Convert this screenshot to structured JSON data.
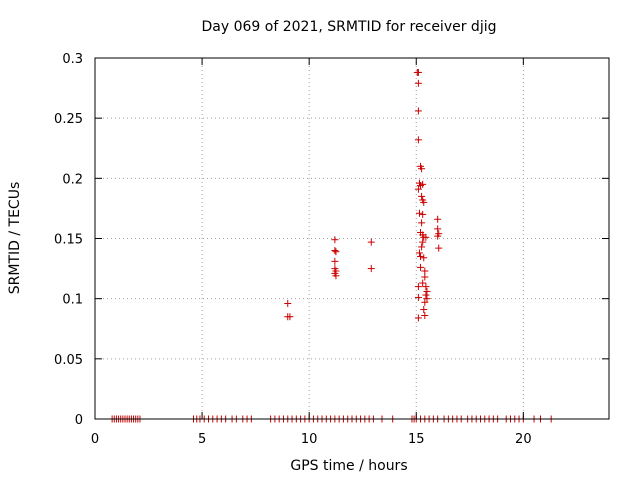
{
  "chart_data": {
    "type": "scatter",
    "title": "Day 069 of 2021, SRMTID for receiver djig",
    "xlabel": "GPS time / hours",
    "ylabel": "SRMTID / TECUs",
    "xlim": [
      0,
      24
    ],
    "ylim": [
      0,
      0.3
    ],
    "xticks": [
      0,
      5,
      10,
      15,
      20
    ],
    "yticks": [
      0,
      0.05,
      0.1,
      0.15,
      0.2,
      0.25,
      0.3
    ],
    "xtick_labels": [
      "0",
      "5",
      "10",
      "15",
      "20"
    ],
    "ytick_labels": [
      "0",
      "0.05",
      "0.1",
      "0.15",
      "0.2",
      "0.25",
      "0.3"
    ],
    "grid": true,
    "marker_color": "#cc0000",
    "marker": "plus",
    "series": [
      {
        "values": [
          [
            0.8,
            0
          ],
          [
            0.9,
            0
          ],
          [
            1.0,
            0
          ],
          [
            1.1,
            0
          ],
          [
            1.2,
            0
          ],
          [
            1.3,
            0
          ],
          [
            1.4,
            0
          ],
          [
            1.5,
            0
          ],
          [
            1.6,
            0
          ],
          [
            1.7,
            0
          ],
          [
            1.8,
            0
          ],
          [
            1.9,
            0
          ],
          [
            2.0,
            0
          ],
          [
            2.1,
            0
          ],
          [
            4.6,
            0
          ],
          [
            4.75,
            0
          ],
          [
            4.9,
            0
          ],
          [
            5.1,
            0
          ],
          [
            5.3,
            0
          ],
          [
            5.5,
            0
          ],
          [
            5.7,
            0
          ],
          [
            5.9,
            0
          ],
          [
            6.1,
            0
          ],
          [
            6.4,
            0
          ],
          [
            6.6,
            0
          ],
          [
            6.9,
            0
          ],
          [
            7.1,
            0
          ],
          [
            7.3,
            0
          ],
          [
            8.2,
            0
          ],
          [
            8.4,
            0
          ],
          [
            8.6,
            0
          ],
          [
            8.8,
            0
          ],
          [
            9.0,
            0
          ],
          [
            9.2,
            0
          ],
          [
            9.4,
            0
          ],
          [
            9.6,
            0
          ],
          [
            9.8,
            0
          ],
          [
            10.0,
            0
          ],
          [
            10.2,
            0
          ],
          [
            10.4,
            0
          ],
          [
            10.6,
            0
          ],
          [
            10.8,
            0
          ],
          [
            11.0,
            0
          ],
          [
            11.2,
            0
          ],
          [
            11.4,
            0
          ],
          [
            11.6,
            0
          ],
          [
            11.8,
            0
          ],
          [
            12.0,
            0
          ],
          [
            12.2,
            0
          ],
          [
            12.4,
            0
          ],
          [
            12.6,
            0
          ],
          [
            12.8,
            0
          ],
          [
            13.0,
            0
          ],
          [
            13.4,
            0
          ],
          [
            13.9,
            0
          ],
          [
            14.8,
            0
          ],
          [
            14.9,
            0
          ],
          [
            15.0,
            0
          ],
          [
            15.2,
            0
          ],
          [
            15.4,
            0
          ],
          [
            15.6,
            0
          ],
          [
            15.8,
            0
          ],
          [
            16.0,
            0
          ],
          [
            16.3,
            0
          ],
          [
            16.5,
            0
          ],
          [
            16.7,
            0
          ],
          [
            16.9,
            0
          ],
          [
            17.1,
            0
          ],
          [
            17.4,
            0
          ],
          [
            17.6,
            0
          ],
          [
            17.8,
            0
          ],
          [
            18.0,
            0
          ],
          [
            18.2,
            0
          ],
          [
            18.4,
            0
          ],
          [
            18.6,
            0
          ],
          [
            18.8,
            0
          ],
          [
            19.2,
            0
          ],
          [
            19.4,
            0
          ],
          [
            19.6,
            0
          ],
          [
            19.8,
            0
          ],
          [
            20.0,
            0
          ],
          [
            20.5,
            0
          ],
          [
            20.8,
            0
          ],
          [
            21.3,
            0
          ],
          [
            9.0,
            0.096
          ],
          [
            9.0,
            0.085
          ],
          [
            9.1,
            0.085
          ],
          [
            11.2,
            0.149
          ],
          [
            11.2,
            0.14
          ],
          [
            11.25,
            0.139
          ],
          [
            11.2,
            0.131
          ],
          [
            11.2,
            0.125
          ],
          [
            11.25,
            0.123
          ],
          [
            11.2,
            0.121
          ],
          [
            11.25,
            0.119
          ],
          [
            12.9,
            0.147
          ],
          [
            12.9,
            0.125
          ],
          [
            15.05,
            0.288
          ],
          [
            15.1,
            0.288
          ],
          [
            15.1,
            0.279
          ],
          [
            15.1,
            0.256
          ],
          [
            15.1,
            0.232
          ],
          [
            15.2,
            0.21
          ],
          [
            15.25,
            0.208
          ],
          [
            15.15,
            0.196
          ],
          [
            15.2,
            0.194
          ],
          [
            15.3,
            0.195
          ],
          [
            15.1,
            0.191
          ],
          [
            15.25,
            0.185
          ],
          [
            15.3,
            0.182
          ],
          [
            15.35,
            0.18
          ],
          [
            15.15,
            0.171
          ],
          [
            15.3,
            0.17
          ],
          [
            15.25,
            0.163
          ],
          [
            15.2,
            0.155
          ],
          [
            15.3,
            0.153
          ],
          [
            15.35,
            0.151
          ],
          [
            15.45,
            0.151
          ],
          [
            15.3,
            0.147
          ],
          [
            15.25,
            0.143
          ],
          [
            15.15,
            0.138
          ],
          [
            15.2,
            0.135
          ],
          [
            15.35,
            0.134
          ],
          [
            15.2,
            0.126
          ],
          [
            15.4,
            0.123
          ],
          [
            15.4,
            0.118
          ],
          [
            15.3,
            0.113
          ],
          [
            15.1,
            0.11
          ],
          [
            15.45,
            0.11
          ],
          [
            15.5,
            0.106
          ],
          [
            15.45,
            0.103
          ],
          [
            15.1,
            0.101
          ],
          [
            15.5,
            0.1
          ],
          [
            15.4,
            0.097
          ],
          [
            15.35,
            0.091
          ],
          [
            15.4,
            0.086
          ],
          [
            15.1,
            0.084
          ],
          [
            16.0,
            0.166
          ],
          [
            16.0,
            0.158
          ],
          [
            16.05,
            0.154
          ],
          [
            16.0,
            0.152
          ],
          [
            16.05,
            0.142
          ]
        ]
      }
    ]
  }
}
